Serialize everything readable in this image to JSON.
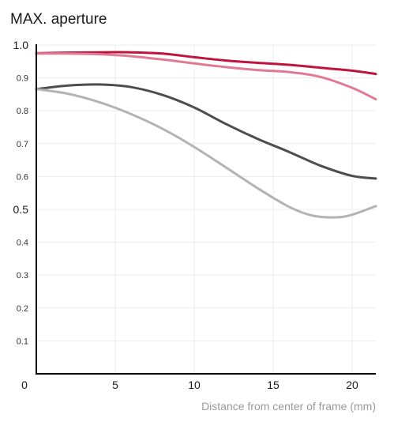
{
  "chart_data": {
    "type": "line",
    "title": "MAX. aperture",
    "xlabel": "Distance from center of frame (mm)",
    "ylabel": "",
    "xlim": [
      0,
      21.5
    ],
    "ylim": [
      0,
      1.0
    ],
    "grid": true,
    "x_ticks": [
      "0",
      "5",
      "10",
      "15",
      "20"
    ],
    "y_ticks": [
      "0.1",
      "0.2",
      "0.3",
      "0.4",
      "0.5",
      "0.6",
      "0.7",
      "0.8",
      "0.9",
      "1.0"
    ],
    "series": [
      {
        "color": "#c0143c",
        "points": [
          [
            0,
            0.975
          ],
          [
            2,
            0.977
          ],
          [
            4,
            0.978
          ],
          [
            6,
            0.978
          ],
          [
            8,
            0.974
          ],
          [
            10,
            0.963
          ],
          [
            12,
            0.953
          ],
          [
            14,
            0.946
          ],
          [
            16,
            0.94
          ],
          [
            18,
            0.931
          ],
          [
            20,
            0.922
          ],
          [
            21.5,
            0.912
          ]
        ]
      },
      {
        "color": "#e07a93",
        "points": [
          [
            0,
            0.974
          ],
          [
            2,
            0.974
          ],
          [
            4,
            0.972
          ],
          [
            6,
            0.966
          ],
          [
            8,
            0.956
          ],
          [
            10,
            0.944
          ],
          [
            12,
            0.933
          ],
          [
            14,
            0.924
          ],
          [
            16,
            0.918
          ],
          [
            18,
            0.903
          ],
          [
            20,
            0.87
          ],
          [
            21.5,
            0.835
          ]
        ]
      },
      {
        "color": "#4d4d4d",
        "points": [
          [
            0,
            0.866
          ],
          [
            2,
            0.877
          ],
          [
            4,
            0.88
          ],
          [
            6,
            0.872
          ],
          [
            8,
            0.848
          ],
          [
            10,
            0.81
          ],
          [
            12,
            0.76
          ],
          [
            14,
            0.715
          ],
          [
            16,
            0.675
          ],
          [
            18,
            0.633
          ],
          [
            20,
            0.602
          ],
          [
            21.5,
            0.594
          ]
        ]
      },
      {
        "color": "#b3b3b3",
        "points": [
          [
            0,
            0.866
          ],
          [
            2,
            0.852
          ],
          [
            4,
            0.826
          ],
          [
            6,
            0.79
          ],
          [
            8,
            0.745
          ],
          [
            10,
            0.69
          ],
          [
            12,
            0.628
          ],
          [
            14,
            0.565
          ],
          [
            16,
            0.508
          ],
          [
            17.5,
            0.481
          ],
          [
            19,
            0.476
          ],
          [
            20,
            0.484
          ],
          [
            21.5,
            0.51
          ]
        ]
      }
    ]
  }
}
